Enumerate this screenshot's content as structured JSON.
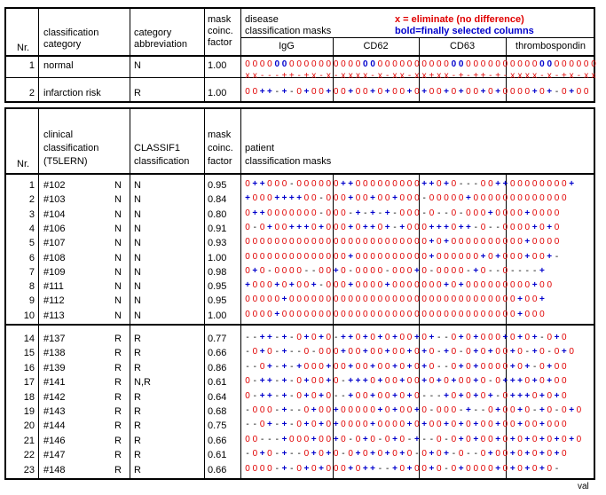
{
  "table1": {
    "headers": {
      "nr": "Nr.",
      "classification_category": [
        "classification",
        "category"
      ],
      "category_abbreviation": [
        "category",
        "abbreviation"
      ],
      "mask_coinc_factor": [
        "mask",
        "coinc.",
        "factor"
      ],
      "disease_masks": [
        "disease",
        "classification masks"
      ],
      "legend_eliminate": "x = eliminate (no difference)",
      "legend_bold": "bold=finally selected columns",
      "groups": [
        "IgG",
        "CD62",
        "CD63",
        "thrombospondin"
      ]
    },
    "rows": [
      {
        "nr": "1",
        "category": "normal",
        "abbr": "N",
        "factor": "1.00",
        "mask": "000000000000000000000000000000000000000000000000",
        "mask_bold": [
          4,
          5,
          16,
          17,
          28,
          29,
          40,
          41
        ],
        "elim": "xx---++-+x-x-xxxx-x-xx-xx+xx-+-++-+-xxxx-x-+x-xx"
      },
      {
        "nr": "2",
        "category": "infarction risk",
        "abbr": "R",
        "factor": "1.00",
        "mask": "00++-+-0+00+00+00+0+00+0+00+0+00+0+0000+0+-0+00"
      }
    ]
  },
  "table2": {
    "headers": {
      "nr": "Nr.",
      "clinical": [
        "clinical",
        "classification",
        "(T5LERN)"
      ],
      "classif1": [
        "CLASSIF1",
        "classification"
      ],
      "mask_coinc_factor": [
        "mask",
        "coinc.",
        "factor"
      ],
      "patient_masks": [
        "patient",
        "classification masks"
      ]
    },
    "rows_n": [
      {
        "nr": "1",
        "id": "#102",
        "clin": "N",
        "cls": "N",
        "factor": "0.95",
        "mask": "0++000-000000++000000000++0+0---00++00000000+"
      },
      {
        "nr": "2",
        "id": "#103",
        "clin": "N",
        "cls": "N",
        "factor": "0.84",
        "mask": "+000++++00-000+00+00+000-00000+0000000000000"
      },
      {
        "nr": "3",
        "id": "#104",
        "clin": "N",
        "cls": "N",
        "factor": "0.80",
        "mask": "0++0000000-000-+-+-+-000-0--0-000+0000+0000"
      },
      {
        "nr": "4",
        "id": "#106",
        "clin": "N",
        "cls": "N",
        "factor": "0.91",
        "mask": "0-0+00+++0+000+0++0+-+000+++0++-0--0000+0+0"
      },
      {
        "nr": "5",
        "id": "#107",
        "clin": "N",
        "cls": "N",
        "factor": "0.93",
        "mask": "0000000000000000000000000+0+0000000000+0000"
      },
      {
        "nr": "6",
        "id": "#108",
        "clin": "N",
        "cls": "N",
        "factor": "1.00",
        "mask": "00000000000000+0000000000+000000+0+000+00+-"
      },
      {
        "nr": "7",
        "id": "#109",
        "clin": "N",
        "cls": "N",
        "factor": "0.98",
        "mask": "0+0-0000--00+0-0000-000+0-0000-+0--0----+"
      },
      {
        "nr": "8",
        "id": "#111",
        "clin": "N",
        "cls": "N",
        "factor": "0.95",
        "mask": "+000+0+00+-000+0000+0000000+0+000000000+00"
      },
      {
        "nr": "9",
        "id": "#112",
        "clin": "N",
        "cls": "N",
        "factor": "0.95",
        "mask": "00000+0000000000000000000000000000000+00+"
      },
      {
        "nr": "10",
        "id": "#113",
        "clin": "N",
        "cls": "N",
        "factor": "1.00",
        "mask": "0000+00000000000000000000000000000000+000"
      }
    ],
    "rows_r": [
      {
        "nr": "14",
        "id": "#137",
        "clin": "R",
        "cls": "R",
        "factor": "0.77",
        "mask": "--++-+-0+0+0-++0+0+0+00+0+--0+0+000+0+0+-0+0"
      },
      {
        "nr": "15",
        "id": "#138",
        "clin": "R",
        "cls": "R",
        "factor": "0.66",
        "mask": "-0+0-+--0-000+00+00+00+0+0-+0-0+0+00+0-+0-0+0"
      },
      {
        "nr": "16",
        "id": "#139",
        "clin": "R",
        "cls": "R",
        "factor": "0.86",
        "mask": "--0+-+-+000+00+00+00+0+0+0--0+0+0000+0+-0+00"
      },
      {
        "nr": "17",
        "id": "#141",
        "clin": "R",
        "cls": "N,R",
        "factor": "0.61",
        "mask": "0-++-+-0+00+0-+++0+00+00+0+0+00+0-0+++0+0+00"
      },
      {
        "nr": "18",
        "id": "#142",
        "clin": "R",
        "cls": "R",
        "factor": "0.64",
        "mask": "0-++-+-0+0+0--+00+00+0+0---+0+0+0+-0+++0+0+0"
      },
      {
        "nr": "19",
        "id": "#143",
        "clin": "R",
        "cls": "R",
        "factor": "0.68",
        "mask": "-000-+--0+00+00000+0+00+0-000-+--0+00+0-+0-0+0"
      },
      {
        "nr": "20",
        "id": "#144",
        "clin": "R",
        "cls": "R",
        "factor": "0.75",
        "mask": "--0+-+-0+0+0+0000+0000+0+00+0+0+00+00+00+000"
      },
      {
        "nr": "21",
        "id": "#146",
        "clin": "R",
        "cls": "R",
        "factor": "0.66",
        "mask": "00---+000+00+0-0+0-0+0-+--0-0+0+00+0+0+0+0+0+0"
      },
      {
        "nr": "22",
        "id": "#147",
        "clin": "R",
        "cls": "R",
        "factor": "0.61",
        "mask": "-0+0-+--0+0+0-0+0+0+0+0-0+0+-0--0+00+0+0+0+0"
      },
      {
        "nr": "23",
        "id": "#148",
        "clin": "R",
        "cls": "R",
        "factor": "0.66",
        "mask": "0000-+-0+0+000+0++--+0+00+0-0+0000+0+0+0+0-"
      }
    ]
  },
  "footer": "val",
  "colors": {
    "red": "#e00000",
    "blue": "#0000cc",
    "black": "#000000"
  }
}
